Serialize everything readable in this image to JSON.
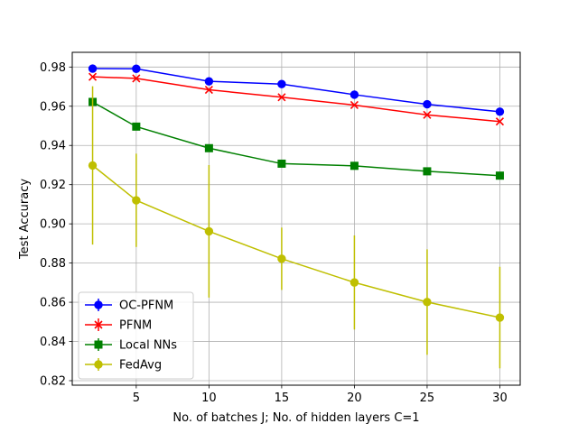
{
  "chart_data": {
    "type": "line",
    "title": "",
    "xlabel": "No. of batches J; No. of hidden layers C=1",
    "ylabel": "Test Accuracy",
    "x": [
      2,
      5,
      10,
      15,
      20,
      25,
      30
    ],
    "xticks": [
      5,
      10,
      15,
      20,
      25,
      30
    ],
    "xtick_labels": [
      "5",
      "10",
      "15",
      "20",
      "25",
      "30"
    ],
    "xlim": [
      0.6,
      31.4
    ],
    "ylim": [
      0.8177,
      0.9875
    ],
    "yticks": [
      0.82,
      0.84,
      0.86,
      0.88,
      0.9,
      0.92,
      0.94,
      0.96,
      0.98
    ],
    "ytick_labels": [
      "0.82",
      "0.84",
      "0.86",
      "0.88",
      "0.90",
      "0.92",
      "0.94",
      "0.96",
      "0.98"
    ],
    "grid": true,
    "legend_position": "lower-left",
    "series": [
      {
        "name": "OC-PFNM",
        "color": "#0000ff",
        "marker": "circle",
        "values": [
          0.9792,
          0.9791,
          0.9727,
          0.9713,
          0.9659,
          0.961,
          0.9572
        ],
        "error": [
          0,
          0,
          0,
          0,
          0,
          0,
          0
        ]
      },
      {
        "name": "PFNM",
        "color": "#ff0000",
        "marker": "x",
        "values": [
          0.975,
          0.9742,
          0.9684,
          0.9646,
          0.9606,
          0.9556,
          0.9522
        ],
        "error": [
          0,
          0,
          0,
          0,
          0,
          0,
          0
        ]
      },
      {
        "name": "Local NNs",
        "color": "#008000",
        "marker": "square",
        "values": [
          0.9622,
          0.9496,
          0.9386,
          0.9307,
          0.9296,
          0.9268,
          0.9246
        ],
        "error": [
          0,
          0,
          0,
          0,
          0,
          0,
          0
        ]
      },
      {
        "name": "FedAvg",
        "color": "#bfbf00",
        "marker": "circle",
        "values": [
          0.9298,
          0.912,
          0.8962,
          0.8822,
          0.8701,
          0.8601,
          0.8522
        ],
        "error": [
          0.0404,
          0.0238,
          0.0338,
          0.0159,
          0.024,
          0.0269,
          0.0259
        ]
      }
    ]
  }
}
